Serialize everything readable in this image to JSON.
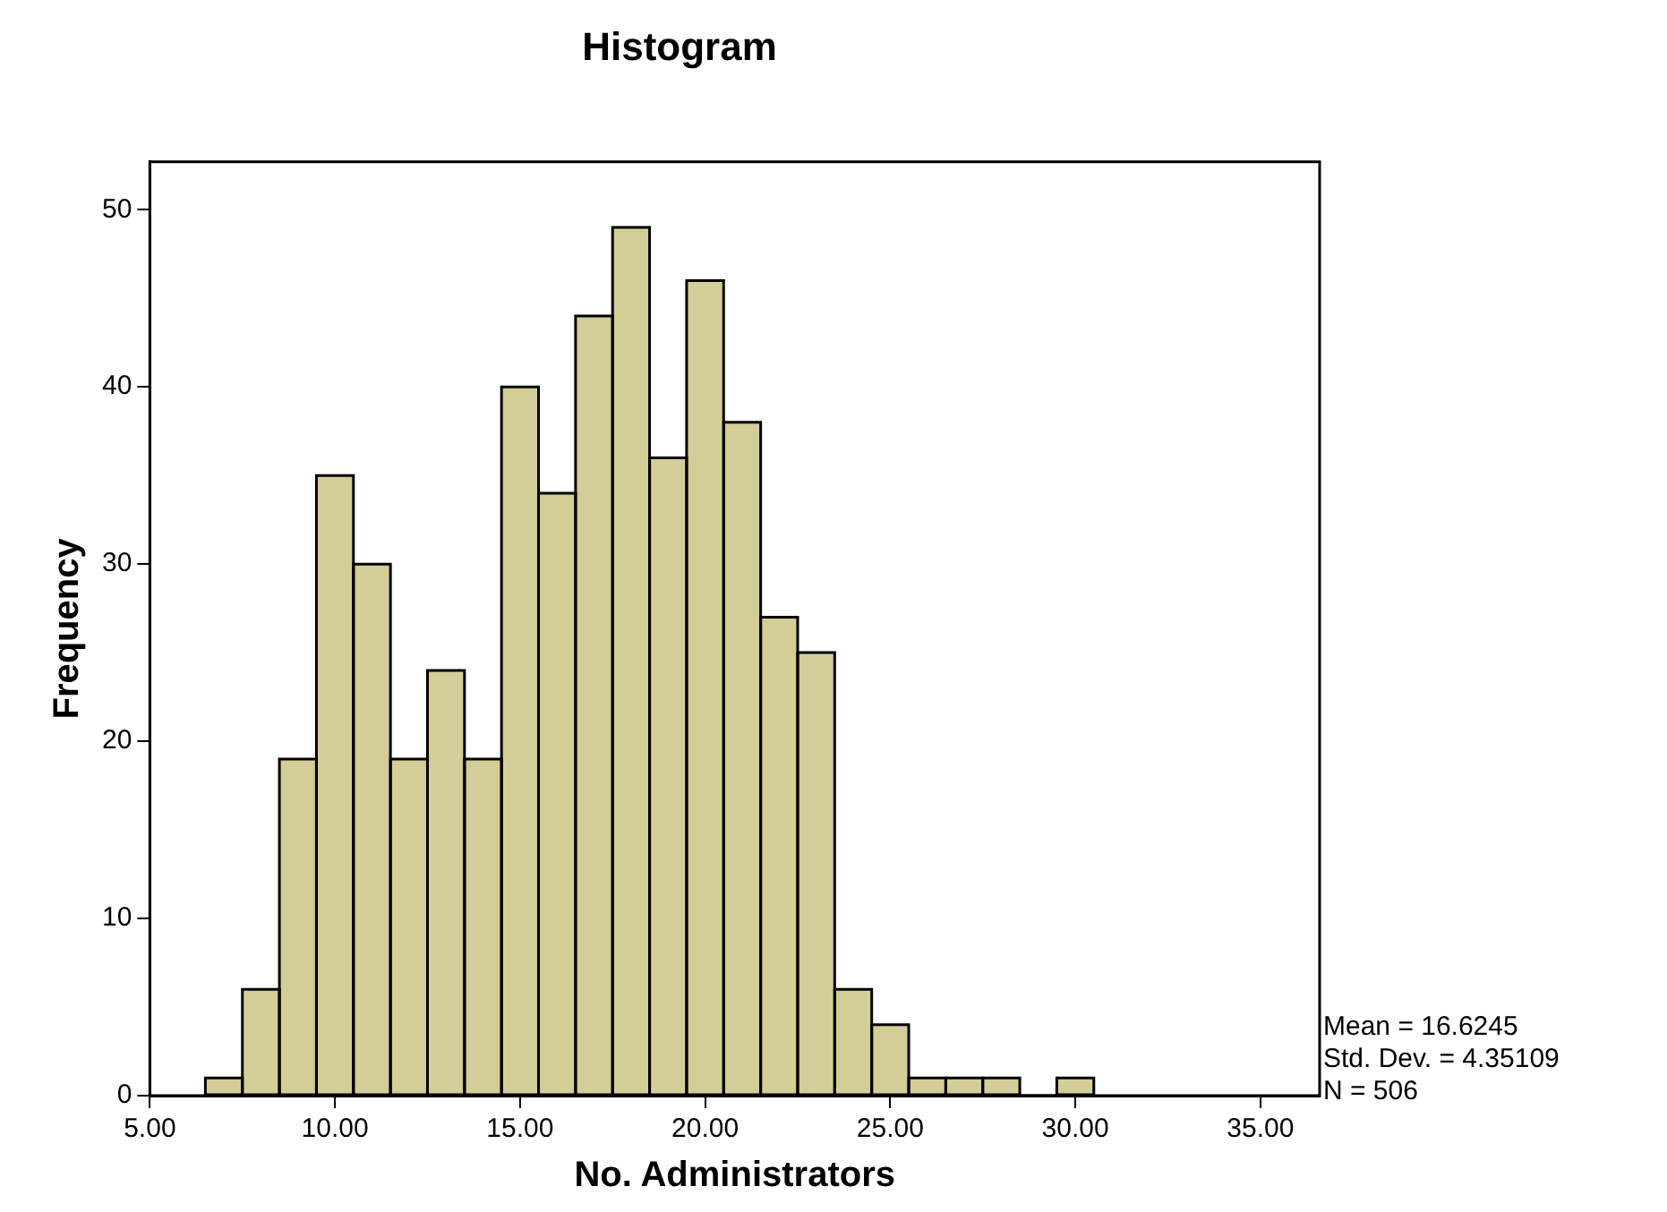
{
  "chart_data": {
    "type": "histogram",
    "title": "Histogram",
    "xlabel": "No. Administrators",
    "ylabel": "Frequency",
    "bins": [
      6.5,
      7.5,
      8.5,
      9.5,
      10.5,
      11.5,
      12.5,
      13.5,
      14.5,
      15.5,
      16.5,
      17.5,
      18.5,
      19.5,
      20.5,
      21.5,
      22.5,
      23.5,
      24.5,
      25.5,
      26.5,
      27.5,
      28.5,
      29.5,
      30.5
    ],
    "values": [
      1,
      6,
      19,
      35,
      30,
      19,
      24,
      19,
      40,
      34,
      44,
      49,
      36,
      46,
      38,
      27,
      25,
      6,
      4,
      1,
      1,
      1,
      0,
      1
    ],
    "color": "#d3cd97",
    "xlim": [
      5,
      36.6
    ],
    "xticks": [
      {
        "value": 5,
        "label": "5.00"
      },
      {
        "value": 10,
        "label": "10.00"
      },
      {
        "value": 15,
        "label": "15.00"
      },
      {
        "value": 20,
        "label": "20.00"
      },
      {
        "value": 25,
        "label": "25.00"
      },
      {
        "value": 30,
        "label": "30.00"
      },
      {
        "value": 35,
        "label": "35.00"
      }
    ],
    "ylim": [
      0,
      52.7
    ],
    "yticks": [
      0,
      10,
      20,
      30,
      40,
      50
    ],
    "grid": false,
    "legend": false,
    "annotations": [
      "Mean = 16.6245",
      "Std. Dev. = 4.35109",
      "N = 506"
    ]
  }
}
